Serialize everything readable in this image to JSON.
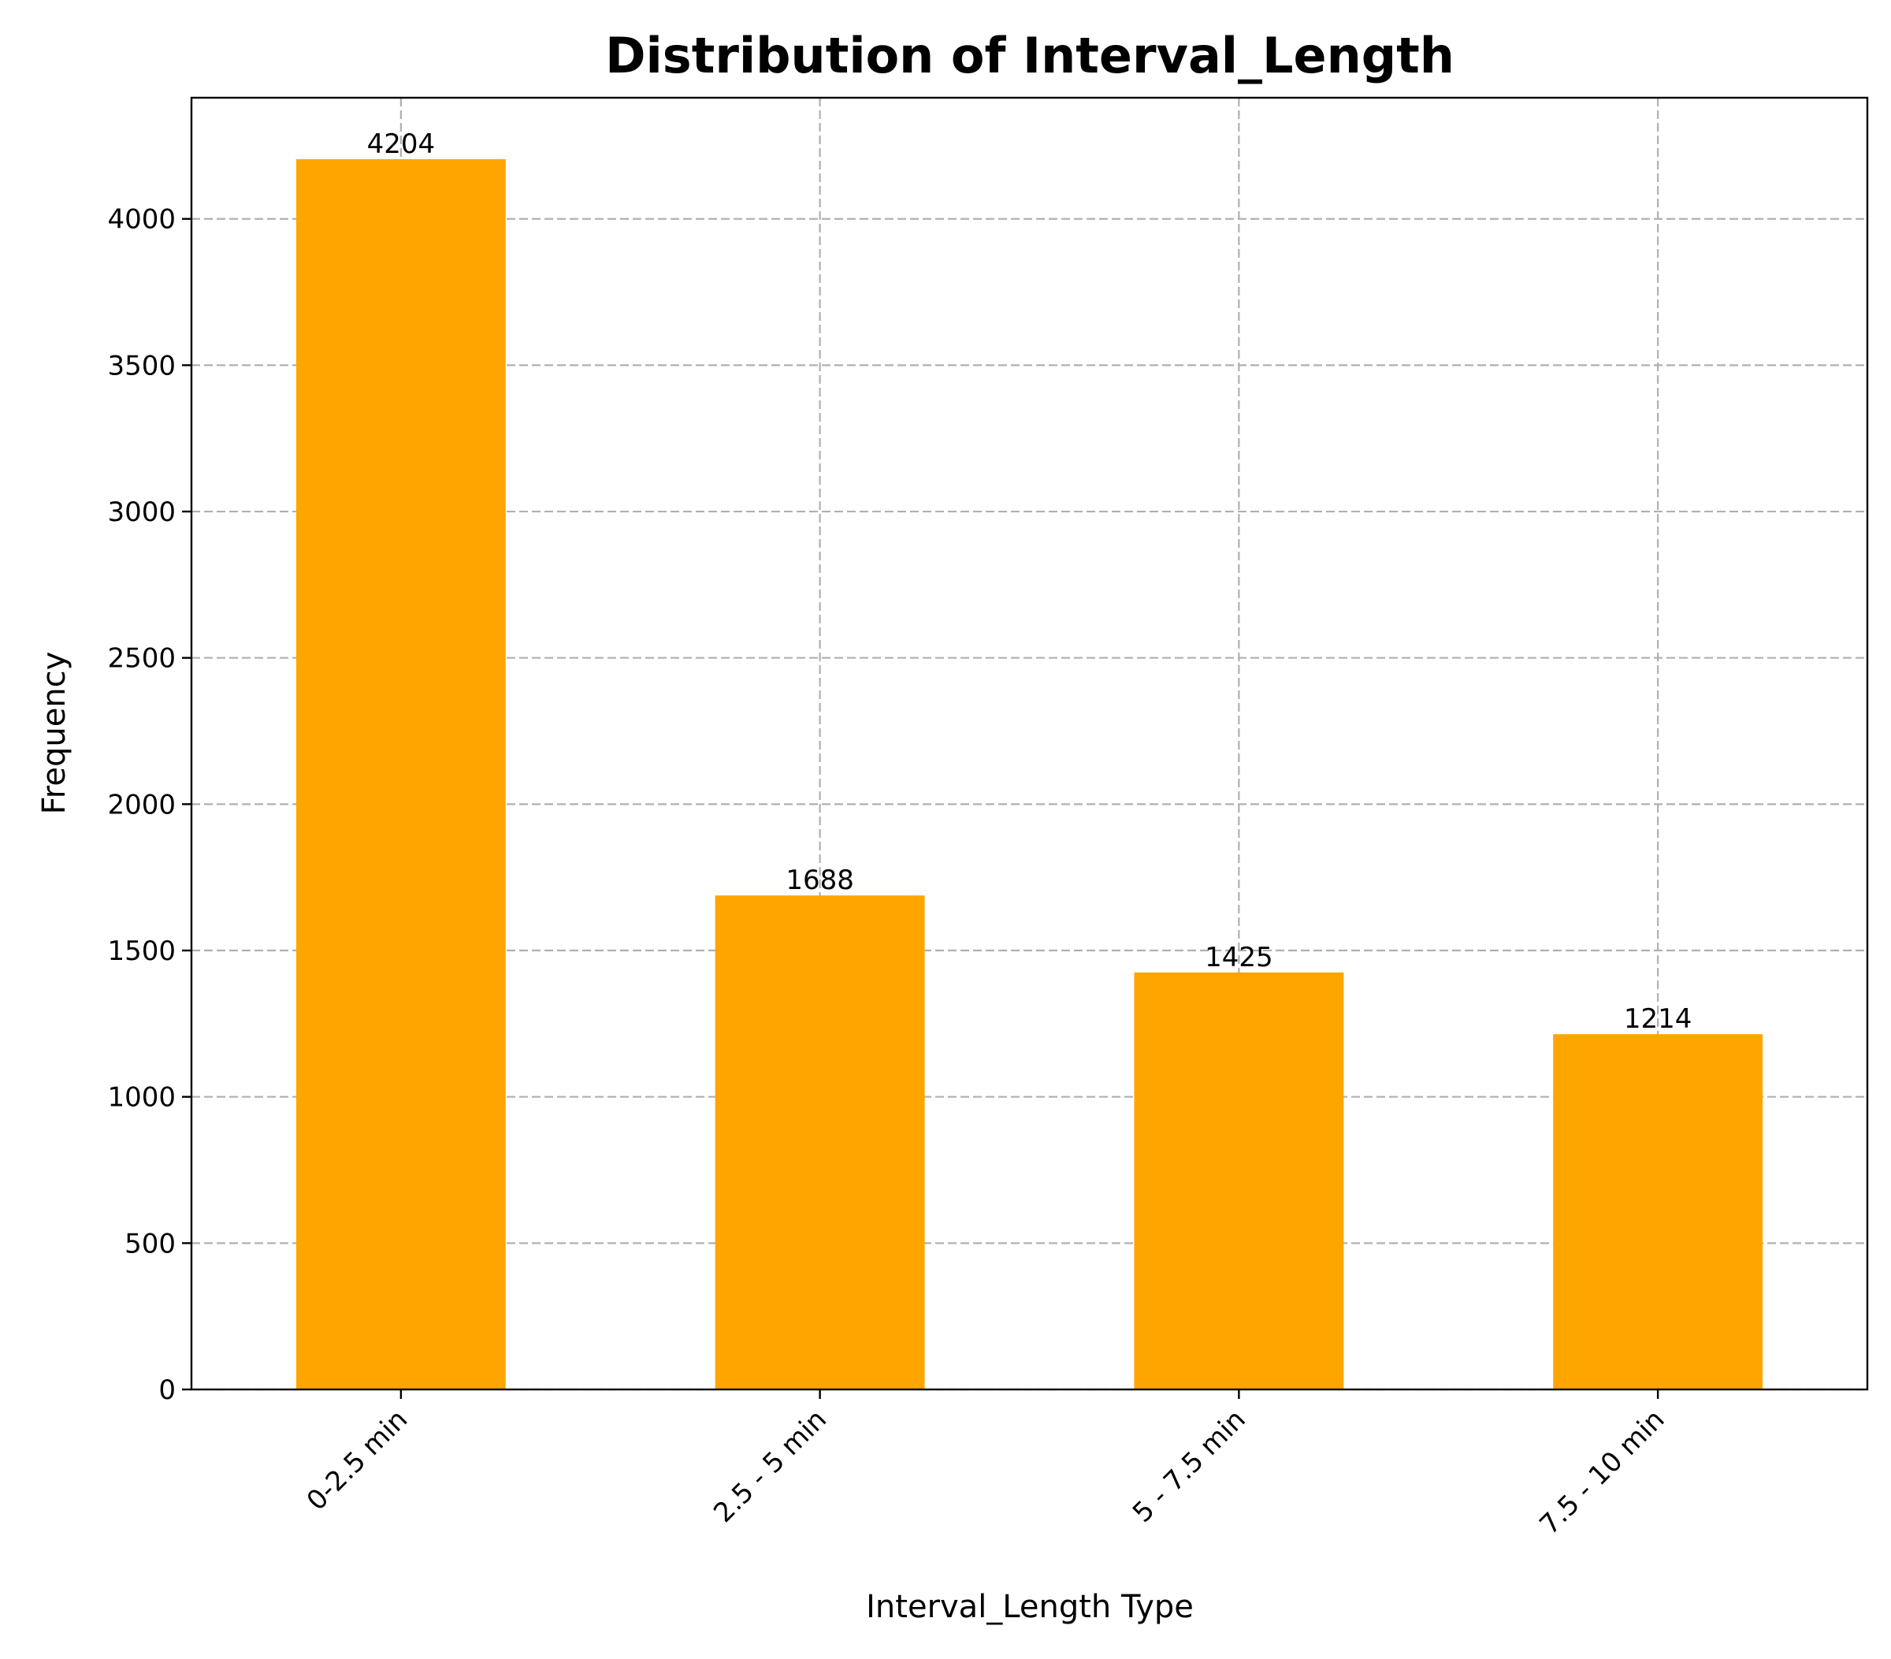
{
  "chart_data": {
    "type": "bar",
    "title": "Distribution of Interval_Length",
    "xlabel": "Interval_Length Type",
    "ylabel": "Frequency",
    "categories": [
      "0-2.5 min",
      "2.5 - 5 min",
      "5 - 7.5 min",
      "7.5 - 10 min"
    ],
    "values": [
      4204,
      1688,
      1425,
      1214
    ],
    "data_labels": [
      "4204",
      "1688",
      "1425",
      "1214"
    ],
    "ylim": [
      0,
      4414
    ],
    "yticks": [
      0,
      500,
      1000,
      1500,
      2000,
      2500,
      3000,
      3500,
      4000
    ],
    "ytick_labels": [
      "0",
      "500",
      "1000",
      "1500",
      "2000",
      "2500",
      "3000",
      "3500",
      "4000"
    ],
    "grid": true,
    "bar_color": "#FFA500",
    "xtick_rotation": 45
  }
}
